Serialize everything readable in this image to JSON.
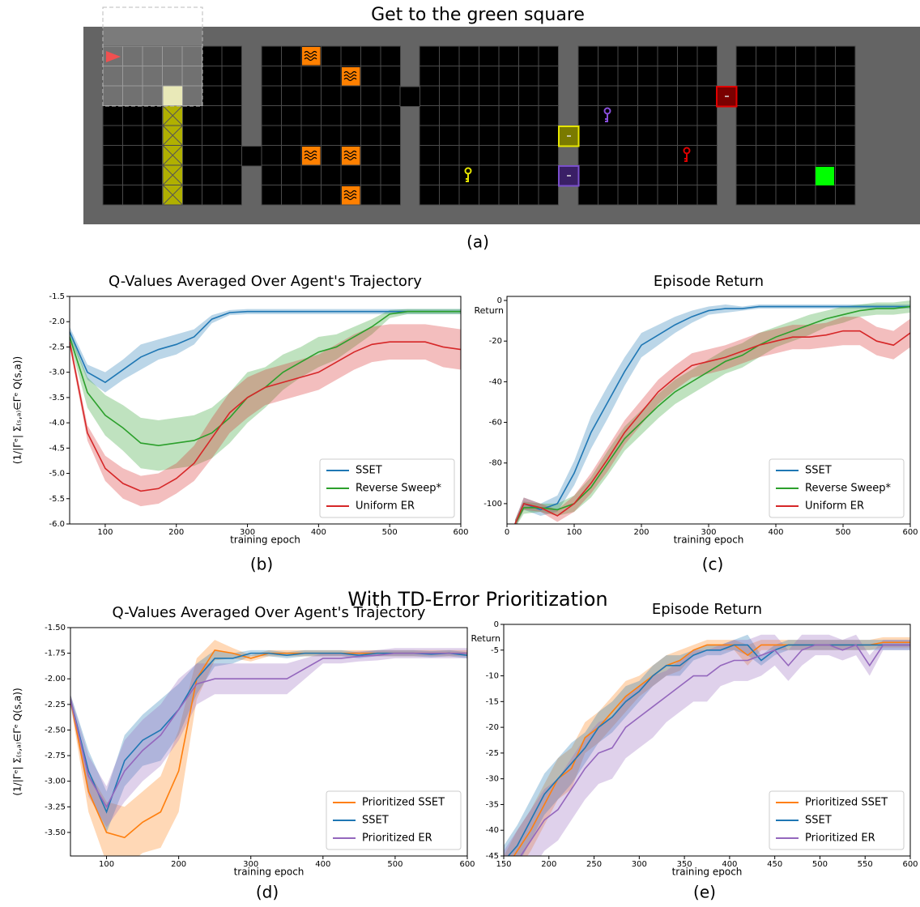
{
  "gridworld": {
    "title": "Get to the green square",
    "caption": "(a)"
  },
  "section_title": "With TD-Error Prioritization",
  "chart_data": [
    {
      "type": "line",
      "title": "Q-Values Averaged Over Agent's Trajectory",
      "caption": "(b)",
      "xlabel": "training epoch",
      "ylabel": "(1/|Γᵉ| Σ₍ₛ,ₐ₎∈Γᵉ Q(s,a))",
      "legend": "lower right",
      "xlim": [
        50,
        600
      ],
      "ylim": [
        -6,
        -1.5
      ],
      "xticks": [
        100,
        200,
        300,
        400,
        500,
        600
      ],
      "yticks": [
        -1.5,
        {
          "value": -2,
          "label": "-2.0"
        },
        -2.5,
        {
          "value": -3,
          "label": "-3.0"
        },
        -3.5,
        {
          "value": -4,
          "label": "-4.0"
        },
        -4.5,
        {
          "value": -5,
          "label": "-5.0"
        },
        -5.5,
        {
          "value": -6,
          "label": "-6.0"
        }
      ],
      "x": [
        50,
        75,
        100,
        125,
        150,
        175,
        200,
        225,
        250,
        275,
        300,
        325,
        350,
        375,
        400,
        425,
        450,
        475,
        500,
        525,
        550,
        575,
        600
      ],
      "series": [
        {
          "name": "SSET",
          "color": "#1f77b4",
          "values": [
            -2.2,
            -3.0,
            -3.2,
            -2.95,
            -2.7,
            -2.55,
            -2.45,
            -2.3,
            -1.95,
            -1.82,
            -1.8,
            -1.8,
            -1.8,
            -1.8,
            -1.8,
            -1.8,
            -1.8,
            -1.8,
            -1.8,
            -1.8,
            -1.8,
            -1.8,
            -1.8
          ],
          "error": [
            0.1,
            0.15,
            0.2,
            0.2,
            0.25,
            0.2,
            0.2,
            0.15,
            0.08,
            0.05,
            0.05,
            0.05,
            0.05,
            0.05,
            0.05,
            0.05,
            0.05,
            0.05,
            0.05,
            0.05,
            0.05,
            0.05,
            0.05
          ]
        },
        {
          "name": "Reverse Sweep*",
          "color": "#2ca02c",
          "values": [
            -2.3,
            -3.4,
            -3.85,
            -4.1,
            -4.4,
            -4.45,
            -4.4,
            -4.35,
            -4.2,
            -3.9,
            -3.5,
            -3.3,
            -3.0,
            -2.8,
            -2.6,
            -2.5,
            -2.3,
            -2.1,
            -1.85,
            -1.8,
            -1.8,
            -1.8,
            -1.8
          ],
          "error": [
            0.1,
            0.3,
            0.4,
            0.45,
            0.5,
            0.5,
            0.5,
            0.5,
            0.5,
            0.5,
            0.5,
            0.4,
            0.35,
            0.3,
            0.3,
            0.25,
            0.2,
            0.15,
            0.08,
            0.05,
            0.05,
            0.05,
            0.05
          ]
        },
        {
          "name": "Uniform ER",
          "color": "#d62728",
          "values": [
            -2.4,
            -4.2,
            -4.9,
            -5.2,
            -5.35,
            -5.3,
            -5.1,
            -4.8,
            -4.3,
            -3.8,
            -3.5,
            -3.3,
            -3.2,
            -3.1,
            -3.0,
            -2.8,
            -2.6,
            -2.45,
            -2.4,
            -2.4,
            -2.4,
            -2.5,
            -2.55
          ],
          "error": [
            0.1,
            0.15,
            0.25,
            0.3,
            0.3,
            0.3,
            0.3,
            0.35,
            0.4,
            0.4,
            0.4,
            0.35,
            0.35,
            0.35,
            0.35,
            0.35,
            0.35,
            0.35,
            0.35,
            0.35,
            0.35,
            0.4,
            0.4
          ]
        }
      ]
    },
    {
      "type": "line",
      "title": "Episode Return",
      "caption": "(c)",
      "xlabel": "training epoch",
      "ylabel": "Return",
      "legend": "lower right",
      "xlim": [
        0,
        600
      ],
      "ylim": [
        -110,
        2
      ],
      "xticks": [
        0,
        100,
        200,
        300,
        400,
        500,
        600
      ],
      "yticks": [
        0,
        -20,
        -40,
        -60,
        -80,
        -100
      ],
      "x": [
        12,
        25,
        50,
        75,
        100,
        125,
        150,
        175,
        200,
        225,
        250,
        275,
        300,
        325,
        350,
        375,
        400,
        425,
        450,
        475,
        500,
        525,
        550,
        575,
        600
      ],
      "series": [
        {
          "name": "SSET",
          "color": "#1f77b4",
          "values": [
            -110,
            -100,
            -103,
            -100,
            -85,
            -65,
            -50,
            -35,
            -22,
            -17,
            -12,
            -8,
            -5,
            -4,
            -4,
            -3,
            -3,
            -3,
            -3,
            -3,
            -3,
            -3,
            -3,
            -3,
            -3
          ],
          "error": [
            2,
            3,
            3,
            4,
            6,
            8,
            8,
            7,
            6,
            5,
            4,
            3,
            2,
            2,
            1,
            1,
            1,
            1,
            1,
            1,
            1,
            1,
            1,
            1,
            1
          ]
        },
        {
          "name": "Reverse Sweep*",
          "color": "#2ca02c",
          "values": [
            -110,
            -102,
            -102,
            -103,
            -100,
            -92,
            -80,
            -68,
            -60,
            -52,
            -45,
            -40,
            -35,
            -30,
            -27,
            -22,
            -18,
            -15,
            -12,
            -9,
            -7,
            -5,
            -4,
            -4,
            -3
          ],
          "error": [
            2,
            3,
            2,
            3,
            4,
            5,
            6,
            6,
            6,
            6,
            6,
            6,
            6,
            6,
            6,
            6,
            5,
            5,
            5,
            4,
            4,
            3,
            3,
            3,
            3
          ]
        },
        {
          "name": "Uniform ER",
          "color": "#d62728",
          "values": [
            -110,
            -100,
            -102,
            -106,
            -100,
            -90,
            -78,
            -65,
            -55,
            -45,
            -38,
            -32,
            -30,
            -28,
            -25,
            -22,
            -20,
            -18,
            -18,
            -17,
            -15,
            -15,
            -20,
            -22,
            -16
          ],
          "error": [
            2,
            3,
            2,
            3,
            4,
            5,
            6,
            6,
            6,
            6,
            6,
            6,
            6,
            6,
            6,
            6,
            6,
            6,
            6,
            6,
            7,
            7,
            7,
            7,
            7
          ]
        }
      ]
    },
    {
      "type": "line",
      "title": "Q-Values Averaged Over Agent's Trajectory",
      "caption": "(d)",
      "xlabel": "training epoch",
      "ylabel": "(1/|Γᵉ| Σ₍ₛ,ₐ₎∈Γᵉ Q(s,a))",
      "legend": "lower right",
      "xlim": [
        50,
        600
      ],
      "ylim": [
        -3.73,
        -1.5
      ],
      "xticks": [
        100,
        200,
        300,
        400,
        500,
        600
      ],
      "yticks": [
        {
          "value": -1.5,
          "label": "-1.50"
        },
        -1.75,
        {
          "value": -2,
          "label": "-2.00"
        },
        -2.25,
        {
          "value": -2.5,
          "label": "-2.50"
        },
        -2.75,
        {
          "value": -3,
          "label": "-3.00"
        },
        -3.25,
        {
          "value": -3.5,
          "label": "-3.50"
        }
      ],
      "x": [
        50,
        75,
        100,
        125,
        150,
        175,
        200,
        225,
        250,
        275,
        300,
        325,
        350,
        375,
        400,
        425,
        450,
        475,
        500,
        525,
        550,
        575,
        600
      ],
      "series": [
        {
          "name": "Prioritized SSET",
          "color": "#ff7f0e",
          "values": [
            -2.2,
            -3.1,
            -3.5,
            -3.55,
            -3.4,
            -3.3,
            -2.9,
            -2.0,
            -1.72,
            -1.75,
            -1.8,
            -1.75,
            -1.75,
            -1.75,
            -1.75,
            -1.75,
            -1.75,
            -1.75,
            -1.75,
            -1.75,
            -1.75,
            -1.75,
            -1.75
          ],
          "error": [
            0.05,
            0.2,
            0.3,
            0.3,
            0.3,
            0.35,
            0.4,
            0.2,
            0.1,
            0.05,
            0.03,
            0.03,
            0.03,
            0.03,
            0.03,
            0.03,
            0.03,
            0.03,
            0.03,
            0.03,
            0.03,
            0.03,
            0.03
          ]
        },
        {
          "name": "SSET",
          "color": "#1f77b4",
          "values": [
            -2.2,
            -2.9,
            -3.3,
            -2.8,
            -2.6,
            -2.5,
            -2.3,
            -2.0,
            -1.8,
            -1.8,
            -1.75,
            -1.75,
            -1.77,
            -1.75,
            -1.75,
            -1.75,
            -1.77,
            -1.75,
            -1.75,
            -1.75,
            -1.76,
            -1.75,
            -1.77
          ],
          "error": [
            0.05,
            0.2,
            0.2,
            0.25,
            0.25,
            0.3,
            0.25,
            0.15,
            0.08,
            0.05,
            0.03,
            0.03,
            0.03,
            0.03,
            0.03,
            0.03,
            0.03,
            0.03,
            0.03,
            0.03,
            0.03,
            0.03,
            0.03
          ]
        },
        {
          "name": "Prioritized ER",
          "color": "#9467bd",
          "values": [
            -2.2,
            -2.95,
            -3.25,
            -2.9,
            -2.7,
            -2.55,
            -2.3,
            -2.05,
            -2.0,
            -2.0,
            -2.0,
            -2.0,
            -2.0,
            -1.9,
            -1.8,
            -1.8,
            -1.78,
            -1.77,
            -1.75,
            -1.75,
            -1.75,
            -1.75,
            -1.75
          ],
          "error": [
            0.05,
            0.2,
            0.2,
            0.3,
            0.3,
            0.3,
            0.3,
            0.2,
            0.15,
            0.15,
            0.15,
            0.15,
            0.15,
            0.1,
            0.05,
            0.05,
            0.05,
            0.05,
            0.05,
            0.05,
            0.05,
            0.05,
            0.05
          ]
        }
      ]
    },
    {
      "type": "line",
      "title": "Episode Return",
      "caption": "(e)",
      "xlabel": "training epoch",
      "ylabel": "Return",
      "legend": "lower right",
      "xlim": [
        150,
        600
      ],
      "ylim": [
        -45,
        0
      ],
      "xticks": [
        150,
        200,
        250,
        300,
        350,
        400,
        450,
        500,
        550,
        600
      ],
      "yticks": [
        0,
        -5,
        -10,
        -15,
        -20,
        -25,
        -30,
        -35,
        -40,
        -45
      ],
      "x": [
        150,
        165,
        180,
        195,
        210,
        225,
        240,
        255,
        270,
        285,
        300,
        315,
        330,
        345,
        360,
        375,
        390,
        405,
        420,
        435,
        450,
        465,
        480,
        495,
        510,
        525,
        540,
        555,
        570,
        585,
        600
      ],
      "series": [
        {
          "name": "Prioritized SSET",
          "color": "#ff7f0e",
          "values": [
            -48,
            -44,
            -40,
            -35,
            -30,
            -28,
            -22,
            -20,
            -17,
            -14,
            -12,
            -10,
            -8,
            -7,
            -5,
            -4,
            -4,
            -4,
            -6,
            -4,
            -4,
            -4,
            -4,
            -4,
            -4,
            -4,
            -4,
            -4,
            -3.5,
            -3.5,
            -3.5
          ],
          "error": [
            3,
            4,
            4,
            4,
            4,
            4,
            3,
            3,
            3,
            3,
            2,
            2,
            2,
            2,
            1,
            1,
            1,
            1,
            2,
            1,
            1,
            1,
            1,
            1,
            1,
            1,
            1,
            1,
            1,
            1,
            1
          ]
        },
        {
          "name": "SSET",
          "color": "#1f77b4",
          "values": [
            -46,
            -43,
            -38,
            -33,
            -30,
            -27,
            -24,
            -20,
            -18,
            -15,
            -13,
            -10,
            -8,
            -8,
            -6,
            -5,
            -5,
            -4,
            -4,
            -7,
            -5,
            -4,
            -4,
            -4,
            -4,
            -4,
            -4,
            -4,
            -4,
            -4,
            -4
          ],
          "error": [
            3,
            4,
            4,
            4,
            4,
            4,
            3,
            3,
            3,
            3,
            2,
            2,
            2,
            2,
            1,
            1,
            1,
            1,
            2,
            1,
            1,
            1,
            1,
            1,
            1,
            1,
            1,
            1,
            1,
            1,
            1
          ]
        },
        {
          "name": "Prioritized ER",
          "color": "#9467bd",
          "values": [
            -50,
            -46,
            -42,
            -38,
            -36,
            -32,
            -28,
            -25,
            -24,
            -20,
            -18,
            -16,
            -14,
            -12,
            -10,
            -10,
            -8,
            -7,
            -7,
            -6,
            -5,
            -8,
            -5,
            -4,
            -4,
            -5,
            -4,
            -8,
            -4,
            -4,
            -4
          ],
          "error": [
            6,
            6,
            6,
            6,
            6,
            6,
            6,
            6,
            6,
            6,
            6,
            6,
            5,
            5,
            5,
            5,
            4,
            4,
            4,
            4,
            3,
            3,
            3,
            2,
            2,
            2,
            2,
            2,
            1,
            1,
            1
          ]
        }
      ]
    }
  ]
}
